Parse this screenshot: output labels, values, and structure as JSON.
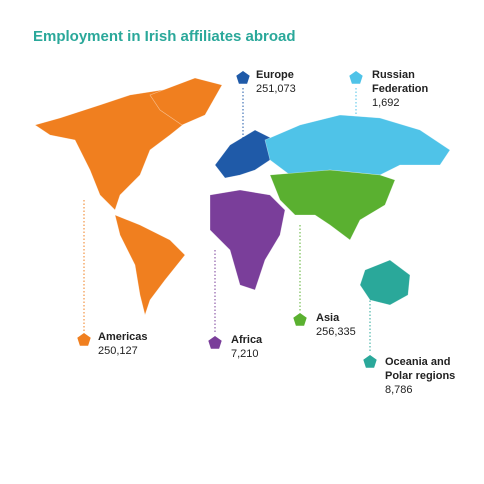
{
  "title": "Employment in Irish affiliates abroad",
  "regions": [
    {
      "name": "Europe",
      "value": "251,073",
      "color": "#1f5aa8"
    },
    {
      "name": "Russian Federation",
      "value": "1,692",
      "color": "#4fc3e8"
    },
    {
      "name": "Americas",
      "value": "250,127",
      "color": "#f07f1f"
    },
    {
      "name": "Africa",
      "value": "7,210",
      "color": "#7a3e9a"
    },
    {
      "name": "Asia",
      "value": "256,335",
      "color": "#5ab030"
    },
    {
      "name": "Oceania and Polar regions",
      "value": "8,786",
      "color": "#2aa89a"
    }
  ]
}
